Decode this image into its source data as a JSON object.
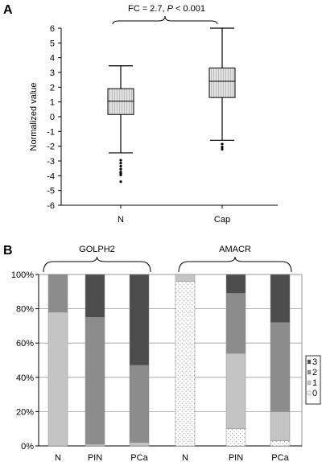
{
  "panels": {
    "a_letter": "A",
    "b_letter": "B"
  },
  "chart_data": [
    {
      "type": "box",
      "panel": "A",
      "ylabel": "Normalized value",
      "ylim": [
        -6,
        6
      ],
      "yticks": [
        -6,
        -5,
        -4,
        -3,
        -2,
        -1,
        0,
        1,
        2,
        3,
        4,
        5,
        6
      ],
      "categories": [
        "N",
        "Cap"
      ],
      "boxes": [
        {
          "category": "N",
          "whisker_low": -2.45,
          "q1": 0.15,
          "median": 1.05,
          "q3": 1.9,
          "whisker_high": 3.45,
          "outliers": [
            -2.95,
            -3.15,
            -3.35,
            -3.55,
            -3.75,
            -3.85,
            -3.95,
            -4.4
          ]
        },
        {
          "category": "Cap",
          "whisker_low": -1.6,
          "q1": 1.3,
          "median": 2.4,
          "q3": 3.3,
          "whisker_high": 6.0,
          "outliers": [
            -1.85,
            -2.05,
            -2.2
          ]
        }
      ],
      "annotation": {
        "text_prefix": "FC = 2.7, ",
        "p_symbol": "P",
        "text_suffix": " < 0.001"
      }
    },
    {
      "type": "stacked-bar",
      "panel": "B",
      "ylim": [
        0,
        100
      ],
      "yticks": [
        "0%",
        "20%",
        "40%",
        "60%",
        "80%",
        "100%"
      ],
      "groups": [
        {
          "name": "GOLPH2",
          "categories": [
            "N",
            "PIN",
            "PCa"
          ]
        },
        {
          "name": "AMACR",
          "categories": [
            "N",
            "PIN",
            "PCa"
          ]
        }
      ],
      "legend": [
        "3",
        "2",
        "1",
        "0"
      ],
      "legend_position": "right",
      "stack_order": [
        "0",
        "1",
        "2",
        "3"
      ],
      "bars": [
        {
          "group": "GOLPH2",
          "category": "N",
          "values": {
            "0": 0,
            "1": 78,
            "2": 22,
            "3": 0
          }
        },
        {
          "group": "GOLPH2",
          "category": "PIN",
          "values": {
            "0": 0,
            "1": 1,
            "2": 74,
            "3": 25
          }
        },
        {
          "group": "GOLPH2",
          "category": "PCa",
          "values": {
            "0": 0,
            "1": 2,
            "2": 45,
            "3": 53
          }
        },
        {
          "group": "AMACR",
          "category": "N",
          "values": {
            "0": 96,
            "1": 4,
            "2": 0,
            "3": 0
          }
        },
        {
          "group": "AMACR",
          "category": "PIN",
          "values": {
            "0": 10,
            "1": 44,
            "2": 35,
            "3": 11
          }
        },
        {
          "group": "AMACR",
          "category": "PCa",
          "values": {
            "0": 3,
            "1": 17,
            "2": 52,
            "3": 28
          }
        }
      ],
      "colors": {
        "3": "#4d4d4d",
        "2": "#8c8c8c",
        "1": "#c4c4c4",
        "0": "#ffffff"
      }
    }
  ]
}
